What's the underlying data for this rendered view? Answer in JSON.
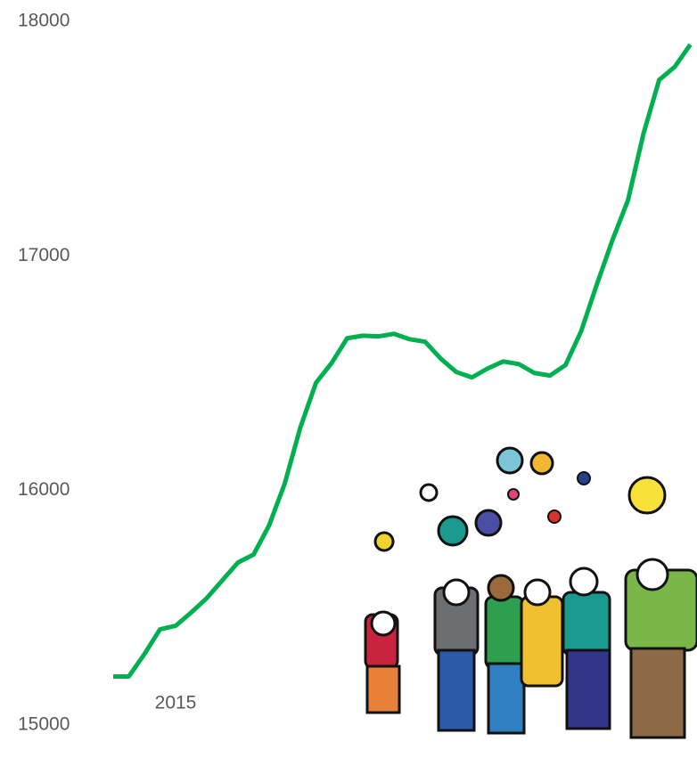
{
  "chart_data": {
    "type": "line",
    "categories": [
      null,
      null,
      null,
      null,
      "2015",
      null,
      null,
      null,
      null,
      null,
      null,
      null,
      null,
      null,
      null,
      null,
      null,
      null,
      null,
      null,
      null,
      null,
      null,
      null,
      null,
      null,
      null,
      null,
      null,
      null,
      null,
      null,
      null,
      null,
      null,
      null,
      null,
      null
    ],
    "series": [
      {
        "name": null,
        "color": "#00b050",
        "values": [
          15207,
          15207,
          15302,
          15408,
          15423,
          15480,
          15541,
          15617,
          15693,
          15727,
          15852,
          16030,
          16269,
          16459,
          16543,
          16649,
          16660,
          16657,
          16668,
          16645,
          16634,
          16562,
          16505,
          16482,
          16520,
          16550,
          16539,
          16501,
          16490,
          16535,
          16679,
          16877,
          17066,
          17237,
          17522,
          17750,
          17806,
          17901
        ]
      }
    ],
    "ylim": [
      15000,
      18000
    ],
    "yticks": [
      15000,
      16000,
      17000,
      18000
    ],
    "grid": false
  }
}
